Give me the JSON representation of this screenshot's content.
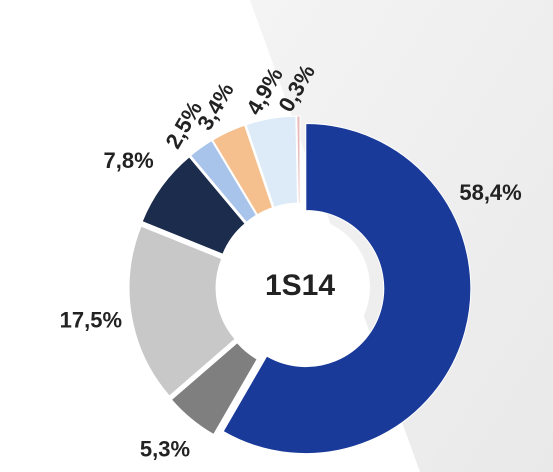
{
  "chart_data": {
    "type": "donut",
    "center_label": "1S14",
    "values": [
      58.4,
      5.3,
      17.5,
      7.8,
      2.5,
      3.4,
      4.9,
      0.3
    ],
    "value_labels": [
      "58,4%",
      "5,3%",
      "17,5%",
      "7,8%",
      "2,5%",
      "3,4%",
      "4,9%",
      "0,3%"
    ],
    "colors": [
      "#1a3a9a",
      "#7f7f7f",
      "#c8c8c8",
      "#1c2c4c",
      "#a9c4ea",
      "#f6bf8e",
      "#dcebf7",
      "#e8b9b9"
    ]
  }
}
